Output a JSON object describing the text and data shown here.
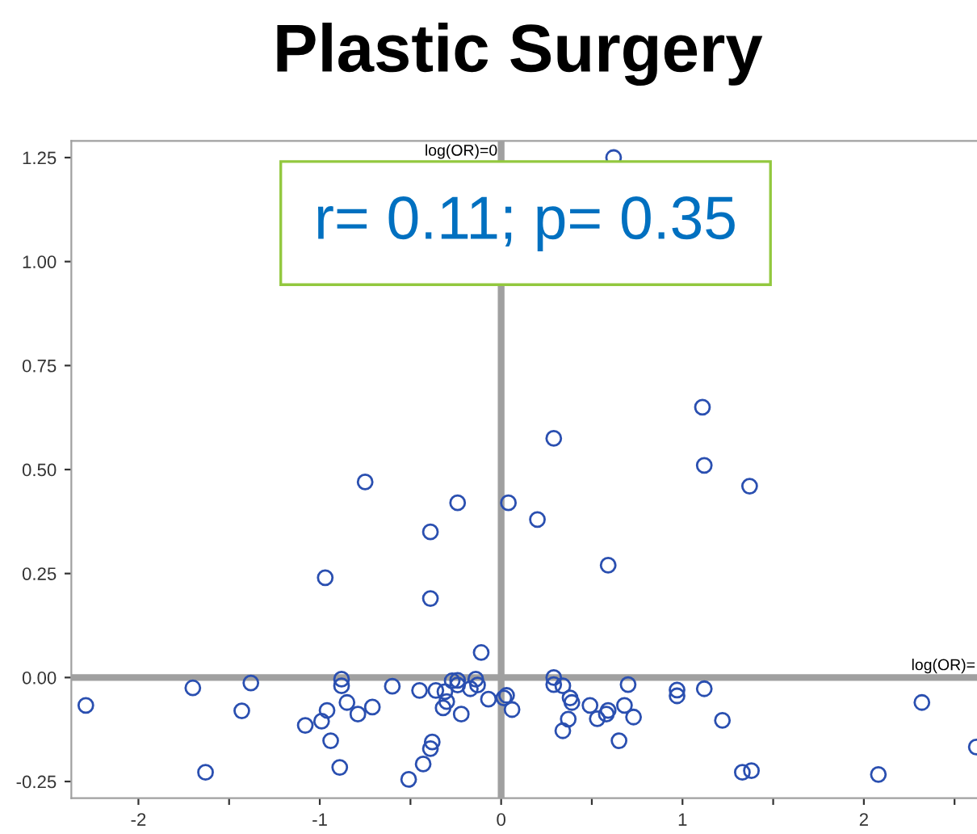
{
  "chart_data": {
    "type": "scatter",
    "title": "Plastic Surgery",
    "marker": "circle",
    "grid": false,
    "xlim": [
      -2.37,
      2.64
    ],
    "ylim": [
      -0.29,
      1.29
    ],
    "xticks": [
      -2,
      {
        "value": -1.5,
        "label": null
      },
      -1,
      {
        "value": -0.5,
        "label": null
      },
      0,
      {
        "value": 0.5,
        "label": null
      },
      1,
      {
        "value": 1.5,
        "label": null
      },
      2,
      {
        "value": 2.5,
        "label": null
      }
    ],
    "yticks": [
      -0.25,
      {
        "value": 0,
        "label": "0.00"
      },
      0.25,
      {
        "value": 0.5,
        "label": "0.50"
      },
      0.75,
      {
        "value": 1,
        "label": "1.00"
      },
      1.25
    ],
    "ref_lines": [
      {
        "axis": "x",
        "value": 0,
        "label": "log(OR)=0",
        "color": "#a0a0a0"
      },
      {
        "axis": "y",
        "value": 0,
        "label": "log(OR)=",
        "color": "#a0a0a0"
      }
    ],
    "annotations": [
      "r= 0.11; p= 0.35"
    ],
    "series": [
      {
        "color": "#2a4fb0",
        "x": [
          0.62,
          1.11,
          0.29,
          1.12,
          1.37,
          -0.75,
          -0.24,
          0.04,
          0.2,
          -0.39,
          0.59,
          -0.97,
          -0.39,
          -0.11,
          -2.29,
          -1.7,
          -1.38,
          -1.43,
          -1.63,
          -1.08,
          -0.99,
          -0.96,
          -0.94,
          -0.89,
          -0.88,
          -0.88,
          -0.85,
          -0.79,
          -0.71,
          -0.6,
          -0.51,
          -0.45,
          -0.43,
          -0.39,
          -0.38,
          -0.36,
          -0.32,
          -0.31,
          -0.3,
          -0.27,
          -0.24,
          -0.24,
          -0.22,
          -0.17,
          -0.14,
          -0.13,
          -0.07,
          0.015,
          0.03,
          0.06,
          0.29,
          0.29,
          0.34,
          0.38,
          0.39,
          0.37,
          0.34,
          0.49,
          0.53,
          0.59,
          0.58,
          0.65,
          0.68,
          0.7,
          0.73,
          0.97,
          0.97,
          1.12,
          1.22,
          1.33,
          1.38,
          2.08,
          2.32,
          2.62
        ],
        "values": [
          1.25,
          0.65,
          0.575,
          0.51,
          0.46,
          0.47,
          0.42,
          0.42,
          0.38,
          0.35,
          0.27,
          0.24,
          0.19,
          0.06,
          -0.067,
          -0.025,
          -0.013,
          -0.08,
          -0.228,
          -0.115,
          -0.105,
          -0.079,
          -0.152,
          -0.216,
          -0.004,
          -0.02,
          -0.06,
          -0.088,
          -0.071,
          -0.021,
          -0.245,
          -0.031,
          -0.208,
          -0.171,
          -0.155,
          -0.031,
          -0.073,
          -0.034,
          -0.058,
          -0.008,
          -0.018,
          -0.007,
          -0.088,
          -0.027,
          -0.004,
          -0.018,
          -0.052,
          -0.049,
          -0.043,
          -0.077,
          0.0,
          -0.017,
          -0.02,
          -0.049,
          -0.06,
          -0.1,
          -0.128,
          -0.067,
          -0.099,
          -0.079,
          -0.088,
          -0.152,
          -0.067,
          -0.017,
          -0.095,
          -0.03,
          -0.044,
          -0.027,
          -0.103,
          -0.228,
          -0.224,
          -0.233,
          -0.06,
          -0.167
        ]
      }
    ]
  }
}
